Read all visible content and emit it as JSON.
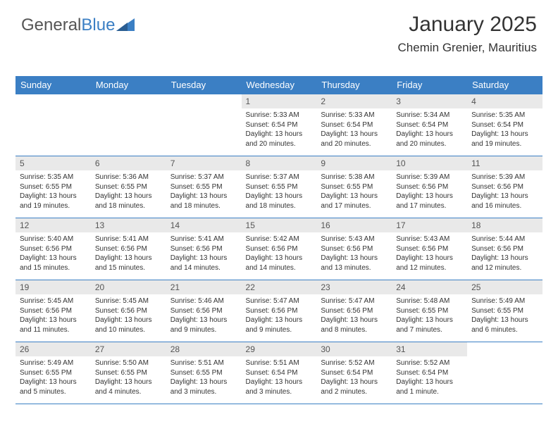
{
  "logo": {
    "text_general": "General",
    "text_blue": "Blue"
  },
  "header": {
    "month_title": "January 2025",
    "location": "Chemin Grenier, Mauritius"
  },
  "colors": {
    "header_bar": "#3b7fc4",
    "header_text": "#ffffff",
    "daynum_bg": "#e9e9e9",
    "body_text": "#333333",
    "rule": "#3b7fc4",
    "page_bg": "#ffffff"
  },
  "typography": {
    "title_fontsize": 30,
    "location_fontsize": 17,
    "th_fontsize": 13,
    "daynum_fontsize": 12,
    "body_fontsize": 10
  },
  "days_of_week": [
    "Sunday",
    "Monday",
    "Tuesday",
    "Wednesday",
    "Thursday",
    "Friday",
    "Saturday"
  ],
  "weeks": [
    [
      {
        "n": "",
        "sunrise": "",
        "sunset": "",
        "daylight": ""
      },
      {
        "n": "",
        "sunrise": "",
        "sunset": "",
        "daylight": ""
      },
      {
        "n": "",
        "sunrise": "",
        "sunset": "",
        "daylight": ""
      },
      {
        "n": "1",
        "sunrise": "Sunrise: 5:33 AM",
        "sunset": "Sunset: 6:54 PM",
        "daylight": "Daylight: 13 hours and 20 minutes."
      },
      {
        "n": "2",
        "sunrise": "Sunrise: 5:33 AM",
        "sunset": "Sunset: 6:54 PM",
        "daylight": "Daylight: 13 hours and 20 minutes."
      },
      {
        "n": "3",
        "sunrise": "Sunrise: 5:34 AM",
        "sunset": "Sunset: 6:54 PM",
        "daylight": "Daylight: 13 hours and 20 minutes."
      },
      {
        "n": "4",
        "sunrise": "Sunrise: 5:35 AM",
        "sunset": "Sunset: 6:54 PM",
        "daylight": "Daylight: 13 hours and 19 minutes."
      }
    ],
    [
      {
        "n": "5",
        "sunrise": "Sunrise: 5:35 AM",
        "sunset": "Sunset: 6:55 PM",
        "daylight": "Daylight: 13 hours and 19 minutes."
      },
      {
        "n": "6",
        "sunrise": "Sunrise: 5:36 AM",
        "sunset": "Sunset: 6:55 PM",
        "daylight": "Daylight: 13 hours and 18 minutes."
      },
      {
        "n": "7",
        "sunrise": "Sunrise: 5:37 AM",
        "sunset": "Sunset: 6:55 PM",
        "daylight": "Daylight: 13 hours and 18 minutes."
      },
      {
        "n": "8",
        "sunrise": "Sunrise: 5:37 AM",
        "sunset": "Sunset: 6:55 PM",
        "daylight": "Daylight: 13 hours and 18 minutes."
      },
      {
        "n": "9",
        "sunrise": "Sunrise: 5:38 AM",
        "sunset": "Sunset: 6:55 PM",
        "daylight": "Daylight: 13 hours and 17 minutes."
      },
      {
        "n": "10",
        "sunrise": "Sunrise: 5:39 AM",
        "sunset": "Sunset: 6:56 PM",
        "daylight": "Daylight: 13 hours and 17 minutes."
      },
      {
        "n": "11",
        "sunrise": "Sunrise: 5:39 AM",
        "sunset": "Sunset: 6:56 PM",
        "daylight": "Daylight: 13 hours and 16 minutes."
      }
    ],
    [
      {
        "n": "12",
        "sunrise": "Sunrise: 5:40 AM",
        "sunset": "Sunset: 6:56 PM",
        "daylight": "Daylight: 13 hours and 15 minutes."
      },
      {
        "n": "13",
        "sunrise": "Sunrise: 5:41 AM",
        "sunset": "Sunset: 6:56 PM",
        "daylight": "Daylight: 13 hours and 15 minutes."
      },
      {
        "n": "14",
        "sunrise": "Sunrise: 5:41 AM",
        "sunset": "Sunset: 6:56 PM",
        "daylight": "Daylight: 13 hours and 14 minutes."
      },
      {
        "n": "15",
        "sunrise": "Sunrise: 5:42 AM",
        "sunset": "Sunset: 6:56 PM",
        "daylight": "Daylight: 13 hours and 14 minutes."
      },
      {
        "n": "16",
        "sunrise": "Sunrise: 5:43 AM",
        "sunset": "Sunset: 6:56 PM",
        "daylight": "Daylight: 13 hours and 13 minutes."
      },
      {
        "n": "17",
        "sunrise": "Sunrise: 5:43 AM",
        "sunset": "Sunset: 6:56 PM",
        "daylight": "Daylight: 13 hours and 12 minutes."
      },
      {
        "n": "18",
        "sunrise": "Sunrise: 5:44 AM",
        "sunset": "Sunset: 6:56 PM",
        "daylight": "Daylight: 13 hours and 12 minutes."
      }
    ],
    [
      {
        "n": "19",
        "sunrise": "Sunrise: 5:45 AM",
        "sunset": "Sunset: 6:56 PM",
        "daylight": "Daylight: 13 hours and 11 minutes."
      },
      {
        "n": "20",
        "sunrise": "Sunrise: 5:45 AM",
        "sunset": "Sunset: 6:56 PM",
        "daylight": "Daylight: 13 hours and 10 minutes."
      },
      {
        "n": "21",
        "sunrise": "Sunrise: 5:46 AM",
        "sunset": "Sunset: 6:56 PM",
        "daylight": "Daylight: 13 hours and 9 minutes."
      },
      {
        "n": "22",
        "sunrise": "Sunrise: 5:47 AM",
        "sunset": "Sunset: 6:56 PM",
        "daylight": "Daylight: 13 hours and 9 minutes."
      },
      {
        "n": "23",
        "sunrise": "Sunrise: 5:47 AM",
        "sunset": "Sunset: 6:56 PM",
        "daylight": "Daylight: 13 hours and 8 minutes."
      },
      {
        "n": "24",
        "sunrise": "Sunrise: 5:48 AM",
        "sunset": "Sunset: 6:55 PM",
        "daylight": "Daylight: 13 hours and 7 minutes."
      },
      {
        "n": "25",
        "sunrise": "Sunrise: 5:49 AM",
        "sunset": "Sunset: 6:55 PM",
        "daylight": "Daylight: 13 hours and 6 minutes."
      }
    ],
    [
      {
        "n": "26",
        "sunrise": "Sunrise: 5:49 AM",
        "sunset": "Sunset: 6:55 PM",
        "daylight": "Daylight: 13 hours and 5 minutes."
      },
      {
        "n": "27",
        "sunrise": "Sunrise: 5:50 AM",
        "sunset": "Sunset: 6:55 PM",
        "daylight": "Daylight: 13 hours and 4 minutes."
      },
      {
        "n": "28",
        "sunrise": "Sunrise: 5:51 AM",
        "sunset": "Sunset: 6:55 PM",
        "daylight": "Daylight: 13 hours and 3 minutes."
      },
      {
        "n": "29",
        "sunrise": "Sunrise: 5:51 AM",
        "sunset": "Sunset: 6:54 PM",
        "daylight": "Daylight: 13 hours and 3 minutes."
      },
      {
        "n": "30",
        "sunrise": "Sunrise: 5:52 AM",
        "sunset": "Sunset: 6:54 PM",
        "daylight": "Daylight: 13 hours and 2 minutes."
      },
      {
        "n": "31",
        "sunrise": "Sunrise: 5:52 AM",
        "sunset": "Sunset: 6:54 PM",
        "daylight": "Daylight: 13 hours and 1 minute."
      },
      {
        "n": "",
        "sunrise": "",
        "sunset": "",
        "daylight": ""
      }
    ]
  ]
}
